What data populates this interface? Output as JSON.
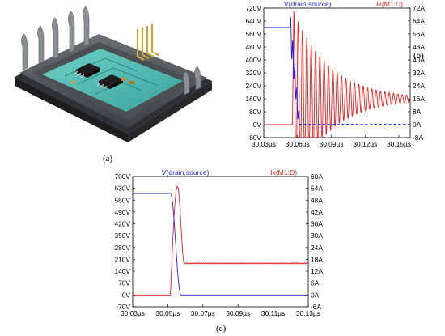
{
  "captions": {
    "a": "(a)",
    "b": "(b)",
    "c": "(c)"
  },
  "module_colors": {
    "board": "#4fb9b2",
    "housing": "#555a5c",
    "pin": "#8a8f91",
    "lead": "#c9a63a",
    "chip": "#222222"
  },
  "chart_data": [
    {
      "type": "line",
      "panel": "b",
      "series": [
        {
          "name": "V(drain,source)",
          "axis": "left",
          "color": "#2020e0"
        },
        {
          "name": "Ix(M1:D)",
          "axis": "right",
          "color": "#e02020"
        }
      ],
      "x_ticks": [
        "30.03µs",
        "30.06µs",
        "30.09µs",
        "30.12µs",
        "30.15µs"
      ],
      "x_tick_values": [
        30.03,
        30.06,
        30.09,
        30.12,
        30.15
      ],
      "xlim": [
        30.03,
        30.16
      ],
      "left_ticks": [
        "720V",
        "640V",
        "560V",
        "480V",
        "400V",
        "320V",
        "240V",
        "160V",
        "80V",
        "0V",
        "-80V"
      ],
      "left_ylim": [
        -80,
        720
      ],
      "right_ticks": [
        "72A",
        "64A",
        "56A",
        "48A",
        "40A",
        "32A",
        "24A",
        "16A",
        "8A",
        "0A",
        "-8A"
      ],
      "right_ylim": [
        -8,
        72
      ],
      "voltage": {
        "pre": 600,
        "switch_t": 30.0535,
        "switch_end": 30.0615,
        "post": 0,
        "ring_amp": 100,
        "ring_freq": 0.7
      },
      "current": {
        "pre": 0,
        "rise_t": 30.0555,
        "peak": 70,
        "final": 16,
        "ring_amp": 14,
        "ring_decay": 0.032,
        "ring_period": 0.00385
      }
    },
    {
      "type": "line",
      "panel": "c",
      "series": [
        {
          "name": "V(drain,source)",
          "axis": "left",
          "color": "#2020e0"
        },
        {
          "name": "Ix(M1:D)",
          "axis": "right",
          "color": "#e02020"
        }
      ],
      "x_ticks": [
        "30.03µs",
        "30.05µs",
        "30.07µs",
        "30.09µs",
        "30.11µs",
        "30.13µs"
      ],
      "x_tick_values": [
        30.03,
        30.05,
        30.07,
        30.09,
        30.11,
        30.13
      ],
      "xlim": [
        30.03,
        30.13
      ],
      "left_ticks": [
        "700V",
        "630V",
        "560V",
        "490V",
        "420V",
        "350V",
        "280V",
        "210V",
        "140V",
        "70V",
        "0V",
        "-70V"
      ],
      "left_ylim": [
        -70,
        700
      ],
      "right_ticks": [
        "60A",
        "54A",
        "48A",
        "42A",
        "36A",
        "30A",
        "24A",
        "18A",
        "12A",
        "6A",
        "0A",
        "-6A"
      ],
      "right_ylim": [
        -6,
        60
      ],
      "voltage": {
        "pre": 600,
        "fall_t0": 30.0515,
        "fall_t1": 30.0575,
        "post": 0
      },
      "current": {
        "pre": 0,
        "rise_t0": 30.0515,
        "peak_t": 30.0555,
        "peak": 55,
        "final": 16,
        "settle_t": 30.0595
      }
    }
  ]
}
